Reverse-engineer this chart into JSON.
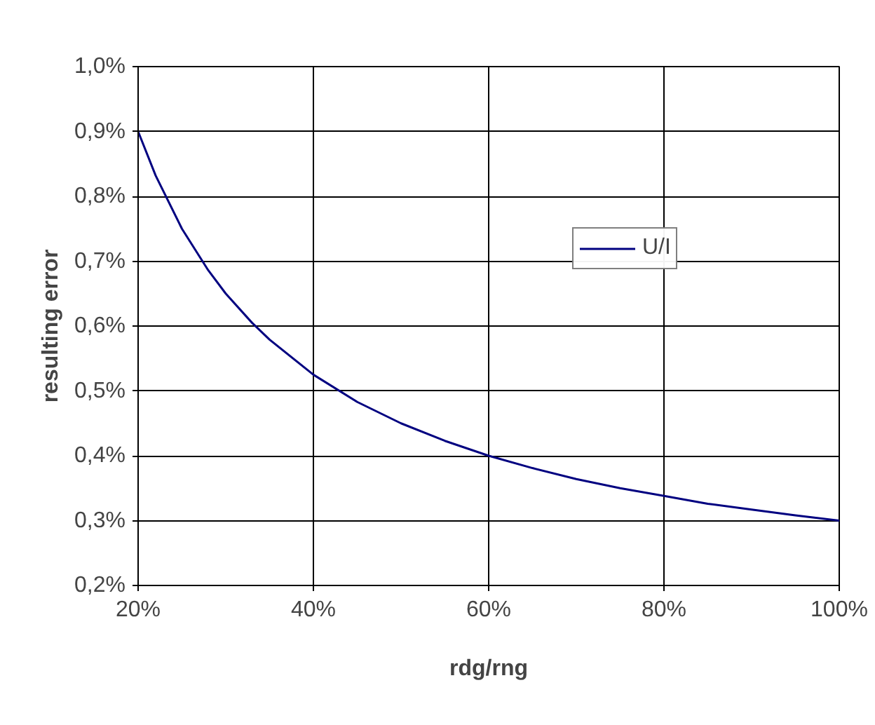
{
  "chart_data": {
    "type": "line",
    "xlabel": "rdg/rng",
    "ylabel": "resulting error",
    "x": [
      20,
      22,
      25,
      28,
      30,
      33,
      35,
      40,
      45,
      50,
      55,
      60,
      65,
      70,
      75,
      80,
      85,
      90,
      95,
      100
    ],
    "series": [
      {
        "name": "U/I",
        "color": "#000080",
        "values": [
          0.9,
          0.832,
          0.75,
          0.686,
          0.65,
          0.605,
          0.579,
          0.525,
          0.483,
          0.45,
          0.423,
          0.4,
          0.381,
          0.364,
          0.35,
          0.338,
          0.326,
          0.317,
          0.308,
          0.3
        ]
      }
    ],
    "xlim": [
      20,
      100
    ],
    "ylim": [
      0.2,
      1.0
    ],
    "xticks": [
      {
        "value": 20,
        "label": "20%"
      },
      {
        "value": 40,
        "label": "40%"
      },
      {
        "value": 60,
        "label": "60%"
      },
      {
        "value": 80,
        "label": "80%"
      },
      {
        "value": 100,
        "label": "100%"
      }
    ],
    "yticks": [
      {
        "value": 0.2,
        "label": "0,2%"
      },
      {
        "value": 0.3,
        "label": "0,3%"
      },
      {
        "value": 0.4,
        "label": "0,4%"
      },
      {
        "value": 0.5,
        "label": "0,5%"
      },
      {
        "value": 0.6,
        "label": "0,6%"
      },
      {
        "value": 0.7,
        "label": "0,7%"
      },
      {
        "value": 0.8,
        "label": "0,8%"
      },
      {
        "value": 0.9,
        "label": "0,9%"
      },
      {
        "value": 1.0,
        "label": "1,0%"
      }
    ],
    "grid": true,
    "legend": "top right",
    "marker": "none",
    "line_style": "solid"
  }
}
